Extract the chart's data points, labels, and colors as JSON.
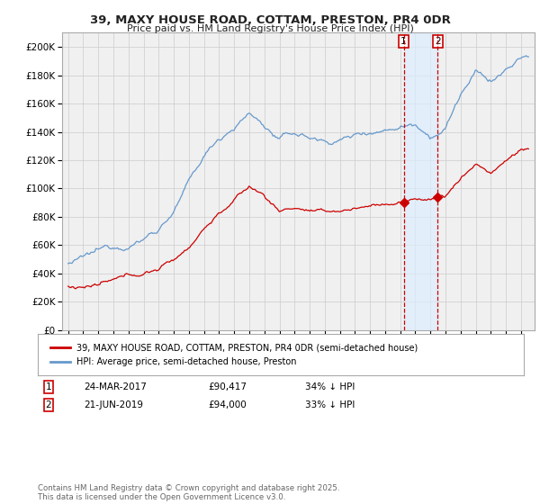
{
  "title1": "39, MAXY HOUSE ROAD, COTTAM, PRESTON, PR4 0DR",
  "title2": "Price paid vs. HM Land Registry's House Price Index (HPI)",
  "ylim": [
    0,
    210000
  ],
  "yticks": [
    0,
    20000,
    40000,
    60000,
    80000,
    100000,
    120000,
    140000,
    160000,
    180000,
    200000
  ],
  "sale1_date": "24-MAR-2017",
  "sale1_price": 90417,
  "sale1_label": "34% ↓ HPI",
  "sale2_date": "21-JUN-2019",
  "sale2_price": 94000,
  "sale2_label": "33% ↓ HPI",
  "sale1_x": 2017.23,
  "sale2_x": 2019.47,
  "legend_label1": "39, MAXY HOUSE ROAD, COTTAM, PRESTON, PR4 0DR (semi-detached house)",
  "legend_label2": "HPI: Average price, semi-detached house, Preston",
  "footnote": "Contains HM Land Registry data © Crown copyright and database right 2025.\nThis data is licensed under the Open Government Licence v3.0.",
  "red_color": "#cc0000",
  "blue_color": "#6699cc",
  "blue_shade_color": "#ddeeff",
  "background_color": "#f0f0f0",
  "grid_color": "#cccccc",
  "xstart": 1995,
  "xend": 2025
}
